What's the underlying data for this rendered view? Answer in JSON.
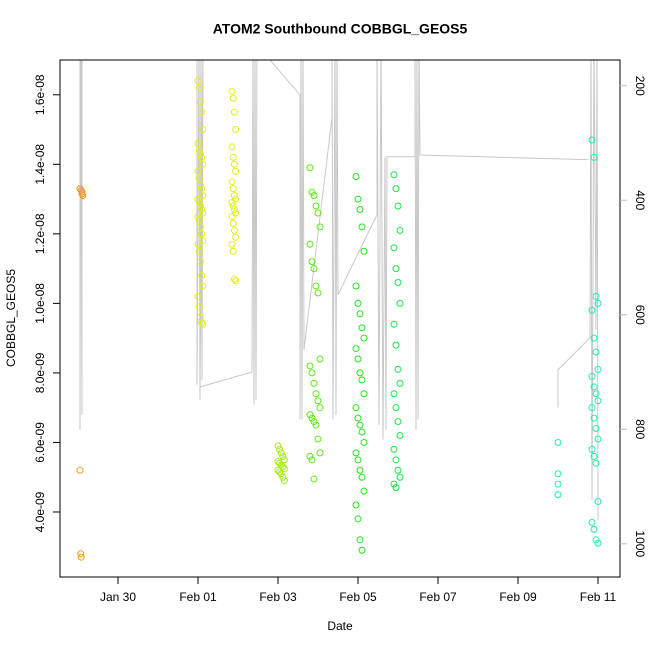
{
  "chart_data": {
    "type": "scatter",
    "title": "ATOM2 Southbound COBBGL_GEOS5",
    "xlabel": "Date",
    "ylabel": "COBBGL_GEOS5",
    "xlim": [
      28.55,
      42.55
    ],
    "xticks": [
      {
        "value": 30,
        "label": "Jan 30"
      },
      {
        "value": 32,
        "label": "Feb 01"
      },
      {
        "value": 34,
        "label": "Feb 03"
      },
      {
        "value": 36,
        "label": "Feb 05"
      },
      {
        "value": 38,
        "label": "Feb 07"
      },
      {
        "value": 40,
        "label": "Feb 09"
      },
      {
        "value": 42,
        "label": "Feb 11"
      }
    ],
    "ylim": [
      2.13e-09,
      1.7e-08
    ],
    "yticks": [
      {
        "value": 4e-09,
        "label": "4.0e-09"
      },
      {
        "value": 6e-09,
        "label": "6.0e-09"
      },
      {
        "value": 8e-09,
        "label": "8.0e-09"
      },
      {
        "value": 1e-08,
        "label": "1.0e-08"
      },
      {
        "value": 1.2e-08,
        "label": "1.2e-08"
      },
      {
        "value": 1.4e-08,
        "label": "1.4e-08"
      },
      {
        "value": 1.6e-08,
        "label": "1.6e-08"
      }
    ],
    "y2lim": [
      1058,
      155
    ],
    "y2ticks": [
      200,
      400,
      600,
      800,
      1000
    ],
    "y2color": "#bebebe",
    "series": [
      {
        "type": "scatter",
        "color": "#f39a1c",
        "x": [
          29.05,
          29.08,
          29.1,
          29.12,
          29.1,
          29.05,
          29.07,
          29.08
        ],
        "values": [
          1.33e-08,
          1.325e-08,
          1.32e-08,
          1.31e-08,
          1.315e-08,
          5.2e-09,
          2.8e-09,
          2.7e-09
        ]
      },
      {
        "type": "scatter",
        "color": "#e2ef1a",
        "x": [
          32.0,
          32.03,
          32.06,
          32.09,
          32.12,
          32.0,
          32.03,
          32.06,
          32.09,
          32.12,
          32.0,
          32.03,
          32.06,
          32.09,
          32.12,
          32.0,
          32.03,
          32.06,
          32.09,
          32.12,
          32.0,
          32.03,
          32.06,
          32.09,
          32.12,
          32.0,
          32.03,
          32.06,
          32.09,
          32.12,
          32.0,
          32.03,
          32.06,
          32.09,
          32.12,
          32.85,
          32.88,
          32.91,
          32.94,
          32.85,
          32.88,
          32.91,
          32.94,
          32.85,
          32.88,
          32.91,
          32.94,
          32.85,
          32.88,
          32.91,
          32.94,
          32.85,
          32.88,
          32.91,
          32.94,
          32.85,
          32.88,
          32.91,
          32.94
        ],
        "values": [
          1.64e-08,
          1.62e-08,
          1.58e-08,
          1.55e-08,
          1.5e-08,
          1.46e-08,
          1.44e-08,
          1.43e-08,
          1.42e-08,
          1.4e-08,
          1.38e-08,
          1.36e-08,
          1.34e-08,
          1.33e-08,
          1.31e-08,
          1.3e-08,
          1.29e-08,
          1.28e-08,
          1.27e-08,
          1.26e-08,
          1.25e-08,
          1.24e-08,
          1.22e-08,
          1.2e-08,
          1.18e-08,
          1.17e-08,
          1.15e-08,
          1.12e-08,
          1.08e-08,
          1.05e-08,
          1.02e-08,
          9.9e-09,
          9.6e-09,
          9.45e-09,
          9.4e-09,
          1.61e-08,
          1.59e-08,
          1.55e-08,
          1.5e-08,
          1.45e-08,
          1.42e-08,
          1.4e-08,
          1.38e-08,
          1.35e-08,
          1.33e-08,
          1.31e-08,
          1.3e-08,
          1.29e-08,
          1.28e-08,
          1.27e-08,
          1.26e-08,
          1.25e-08,
          1.23e-08,
          1.21e-08,
          1.19e-08,
          1.17e-08,
          1.15e-08,
          1.07e-08,
          1.065e-08
        ]
      },
      {
        "type": "scatter",
        "color": "#a6ec10",
        "x": [
          34.0,
          34.04,
          34.08,
          34.12,
          34.16,
          34.0,
          34.04,
          34.08,
          34.12,
          34.16,
          34.0,
          34.04,
          34.08,
          34.12,
          34.16
        ],
        "values": [
          5.9e-09,
          5.8e-09,
          5.7e-09,
          5.6e-09,
          5.5e-09,
          5.45e-09,
          5.4e-09,
          5.35e-09,
          5.3e-09,
          5.25e-09,
          5.2e-09,
          5.15e-09,
          5.1e-09,
          5e-09,
          4.9e-09
        ]
      },
      {
        "type": "scatter",
        "color": "#5fe81a",
        "x": [
          34.8,
          34.85,
          34.9,
          34.95,
          35.0,
          35.05,
          34.8,
          34.85,
          34.9,
          34.95,
          35.0,
          35.05,
          34.8,
          34.85,
          34.9,
          34.95,
          35.0,
          35.05,
          34.8,
          34.85,
          34.9,
          34.95,
          35.0,
          35.05,
          34.8,
          34.85,
          34.9
        ],
        "values": [
          1.39e-08,
          1.32e-08,
          1.31e-08,
          1.28e-08,
          1.26e-08,
          1.22e-08,
          1.17e-08,
          1.12e-08,
          1.1e-08,
          1.05e-08,
          1.03e-08,
          8.4e-09,
          8.2e-09,
          8e-09,
          7.7e-09,
          7.4e-09,
          7.2e-09,
          7e-09,
          6.8e-09,
          6.7e-09,
          6.6e-09,
          6.5e-09,
          6.1e-09,
          5.7e-09,
          5.6e-09,
          5.5e-09,
          4.95e-09
        ]
      },
      {
        "type": "scatter",
        "color": "#22e61a",
        "x": [
          35.95,
          36.0,
          36.05,
          36.1,
          36.15,
          35.95,
          36.0,
          36.05,
          36.1,
          36.15,
          35.95,
          36.0,
          36.05,
          36.1,
          36.15,
          35.95,
          36.0,
          36.05,
          36.1,
          36.15,
          35.95,
          36.0,
          36.05,
          36.1,
          36.15,
          35.95,
          36.0,
          36.05,
          36.1
        ],
        "values": [
          1.365e-08,
          1.3e-08,
          1.27e-08,
          1.22e-08,
          1.15e-08,
          1.05e-08,
          1e-08,
          9.7e-09,
          9.3e-09,
          9e-09,
          8.7e-09,
          8.4e-09,
          8e-09,
          7.8e-09,
          7.4e-09,
          7e-09,
          6.7e-09,
          6.5e-09,
          6.3e-09,
          6e-09,
          5.7e-09,
          5.5e-09,
          5.2e-09,
          5e-09,
          4.6e-09,
          4.2e-09,
          3.8e-09,
          3.2e-09,
          2.9e-09
        ]
      },
      {
        "type": "scatter",
        "color": "#1ae64a",
        "x": [
          36.9,
          36.95,
          37.0,
          37.05,
          36.9,
          36.95,
          37.0,
          37.05,
          36.9,
          36.95,
          37.0,
          37.05,
          36.9,
          36.95,
          37.0,
          37.05,
          36.9,
          36.95,
          37.0,
          37.05,
          36.9,
          36.95
        ],
        "values": [
          1.37e-08,
          1.33e-08,
          1.28e-08,
          1.21e-08,
          1.16e-08,
          1.1e-08,
          1.06e-08,
          1e-08,
          9.4e-09,
          8.8e-09,
          8.1e-09,
          7.7e-09,
          7.4e-09,
          7e-09,
          6.6e-09,
          6.2e-09,
          5.8e-09,
          5.5e-09,
          5.2e-09,
          5e-09,
          4.8e-09,
          4.7e-09
        ]
      },
      {
        "type": "scatter",
        "color": "#1af0b0",
        "x": [
          41.0,
          41.0,
          41.0,
          41.0,
          41.85,
          41.9,
          41.95,
          42.0,
          41.85,
          41.9,
          41.95,
          42.0,
          41.85,
          41.9,
          41.95,
          42.0,
          41.85,
          41.9,
          41.95,
          42.0,
          41.85,
          41.9,
          41.95,
          42.0,
          41.85,
          41.9,
          41.95,
          42.0
        ],
        "values": [
          6e-09,
          5.1e-09,
          4.8e-09,
          4.5e-09,
          1.47e-08,
          1.42e-08,
          1.02e-08,
          1e-08,
          9.8e-09,
          9e-09,
          8.6e-09,
          8.1e-09,
          7.9e-09,
          7.6e-09,
          7.4e-09,
          7.2e-09,
          7e-09,
          6.7e-09,
          6.4e-09,
          6.1e-09,
          5.8e-09,
          5.6e-09,
          5.4e-09,
          4.3e-09,
          3.7e-09,
          3.5e-09,
          3.2e-09,
          3.1e-09
        ]
      },
      {
        "type": "line",
        "axis": "y2",
        "color": "#c8c8c8",
        "x": [
          29.05,
          29.05,
          29.075,
          29.1,
          29.1,
          30.175,
          30.425,
          31.975,
          31.975,
          32.025,
          32.05,
          32.075,
          32.1,
          32.125,
          32.05,
          33.35,
          33.375,
          33.4,
          33.425,
          33.45,
          33.475,
          33.8,
          34.55,
          34.55,
          34.575,
          34.6,
          34.625,
          34.65,
          35.35,
          35.35,
          35.375,
          35.425,
          35.45,
          35.475,
          35.5,
          36.475,
          36.475,
          36.525,
          36.575,
          36.625,
          36.675,
          36.7,
          36.725,
          37.425,
          37.425,
          37.45,
          37.475,
          37.5,
          37.525,
          37.55,
          41.75,
          null,
          41.0,
          41.0,
          41.8,
          41.825,
          41.85,
          41.9,
          41.95,
          41.975,
          42.0
        ],
        "values": [
          120,
          801,
          120,
          775,
          120,
          120,
          155,
          120,
          722,
          120,
          749,
          120,
          714,
          120,
          726,
          700,
          120,
          757,
          120,
          749,
          120,
          155,
          216,
          783,
          120,
          783,
          120,
          661,
          256,
          120,
          783,
          120,
          775,
          120,
          565,
          425,
          120,
          792,
          120,
          818,
          324,
          801,
          324,
          324,
          120,
          801,
          120,
          783,
          120,
          321,
          329,
          null,
          762,
          696,
          640,
          120,
          923,
          120,
          626,
          120,
          958
        ]
      }
    ]
  }
}
